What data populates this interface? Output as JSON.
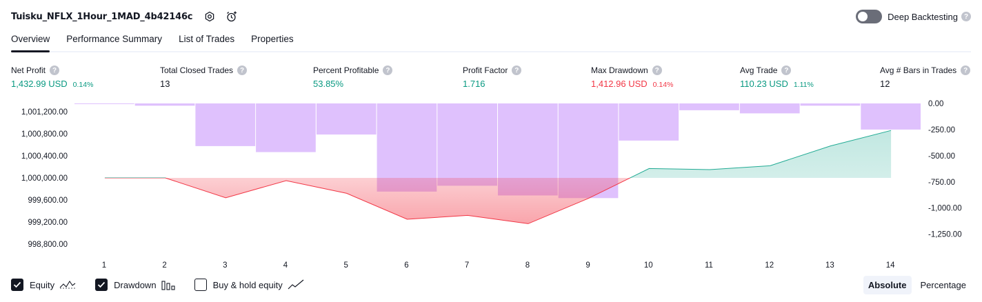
{
  "header": {
    "strategy_name": "Tuisku_NFLX_1Hour_1MAD_4b42146c",
    "deep_backtesting_label": "Deep Backtesting",
    "deep_backtesting_enabled": false,
    "help_glyph": "?"
  },
  "tabs": [
    {
      "label": "Overview",
      "active": true
    },
    {
      "label": "Performance Summary",
      "active": false
    },
    {
      "label": "List of Trades",
      "active": false
    },
    {
      "label": "Properties",
      "active": false
    }
  ],
  "metrics": [
    {
      "label": "Net Profit",
      "value": "1,432.99 USD",
      "sub": "0.14%",
      "color": "#089981"
    },
    {
      "label": "Total Closed Trades",
      "value": "13",
      "sub": "",
      "color": "#131722"
    },
    {
      "label": "Percent Profitable",
      "value": "53.85%",
      "sub": "",
      "color": "#089981"
    },
    {
      "label": "Profit Factor",
      "value": "1.716",
      "sub": "",
      "color": "#089981"
    },
    {
      "label": "Max Drawdown",
      "value": "1,412.96 USD",
      "sub": "0.14%",
      "color": "#f23645"
    },
    {
      "label": "Avg Trade",
      "value": "110.23 USD",
      "sub": "1.11%",
      "color": "#089981"
    },
    {
      "label": "Avg # Bars in Trades",
      "value": "12",
      "sub": "",
      "color": "#131722"
    }
  ],
  "chart_data": {
    "type": "line",
    "x": [
      1,
      2,
      3,
      4,
      5,
      6,
      7,
      8,
      9,
      10,
      11,
      12,
      13,
      14
    ],
    "baseline": 1000000,
    "series": [
      {
        "values": [
          1000000,
          1000000,
          999640,
          999950,
          999720,
          999250,
          999320,
          999170,
          999630,
          1000170,
          1000150,
          1000220,
          1000580,
          1000860
        ]
      }
    ],
    "drawdown": [
      -6,
      -22,
      -408,
      -465,
      -297,
      -843,
      -787,
      -880,
      -905,
      -355,
      -65,
      -95,
      -22,
      -250
    ],
    "left_axis": {
      "ylim": [
        998600,
        1001350
      ],
      "ticks": [
        "1,001,200.00",
        "1,000,800.00",
        "1,000,400.00",
        "1,000,000.00",
        "999,600.00",
        "999,200.00",
        "998,800.00"
      ],
      "tick_values": [
        1001200,
        1000800,
        1000400,
        1000000,
        999600,
        999200,
        998800
      ]
    },
    "right_axis": {
      "ylim": [
        -1450,
        0
      ],
      "ticks": [
        "0.00",
        "-250.00",
        "-500.00",
        "-750.00",
        "-1,000.00",
        "-1,250.00"
      ],
      "tick_values": [
        0,
        -250,
        -500,
        -750,
        -1000,
        -1250
      ]
    },
    "colors": {
      "equity_up": "#22ab94",
      "equity_down": "#f23645",
      "drawdown_bar": "#c084fc"
    }
  },
  "legend": [
    {
      "label": "Equity",
      "checked": true,
      "icon": "equity-line-icon"
    },
    {
      "label": "Drawdown",
      "checked": true,
      "icon": "drawdown-bars-icon"
    },
    {
      "label": "Buy & hold equity",
      "checked": false,
      "icon": "buy-hold-line-icon"
    }
  ],
  "display_modes": [
    {
      "label": "Absolute",
      "active": true
    },
    {
      "label": "Percentage",
      "active": false
    }
  ]
}
